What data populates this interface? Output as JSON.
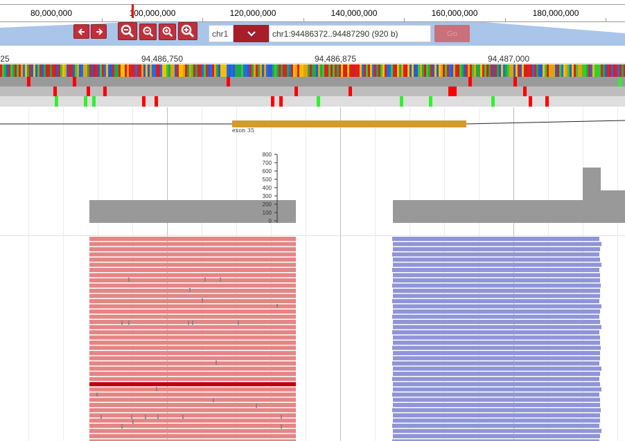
{
  "overview": {
    "ticks": [
      {
        "label": "80,000,000"
      },
      {
        "label": "100,000,000"
      },
      {
        "label": "120,000,000"
      },
      {
        "label": "140,000,000"
      },
      {
        "label": "160,000,000"
      },
      {
        "label": "180,000,000"
      }
    ]
  },
  "toolbar": {
    "back_label": "←",
    "forward_label": "→",
    "chromosome": "chr1",
    "location_value": "chr1:94486372..94487290 (920 b)",
    "go_label": "Go"
  },
  "scale": {
    "labels": [
      {
        "label": "25"
      },
      {
        "label": "94,486,750"
      },
      {
        "label": "94,486,875"
      },
      {
        "label": "94,487,000"
      }
    ]
  },
  "gene_track": {
    "exon_label": "exon 35"
  },
  "coverage": {
    "y_ticks": [
      "800",
      "700",
      "600",
      "500",
      "400",
      "300",
      "200",
      "100",
      "0"
    ]
  },
  "colors": {
    "accent": "#c0303a",
    "exon": "#d49a2a",
    "coverage": "#999999",
    "forward_reads": "#e58585",
    "reverse_reads": "#8f95d6",
    "highlight_read": "#c00010",
    "variant_red": "#ff0000",
    "variant_green": "#33ee33"
  }
}
